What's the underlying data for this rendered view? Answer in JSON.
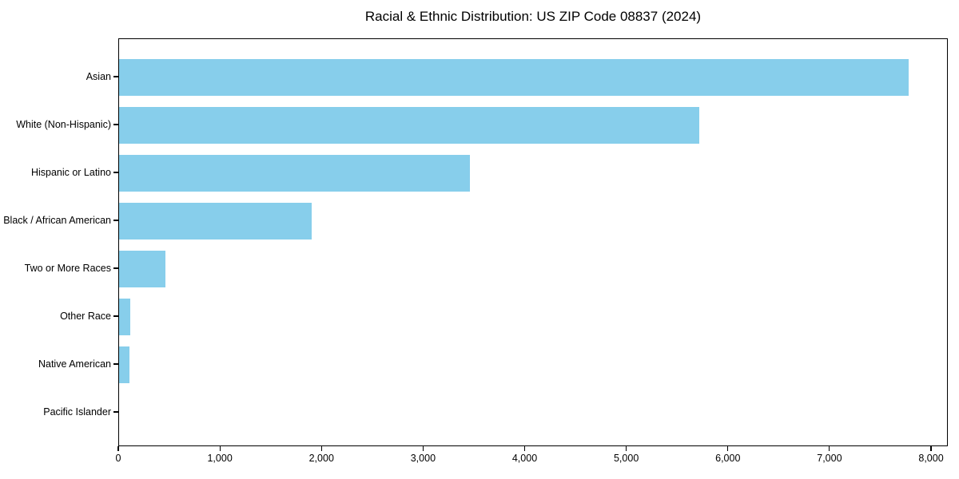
{
  "chart_data": {
    "type": "bar",
    "orientation": "horizontal",
    "title": "Racial & Ethnic Distribution: US ZIP Code 08837 (2024)",
    "categories": [
      "Asian",
      "White (Non-Hispanic)",
      "Hispanic or Latino",
      "Black / African American",
      "Two or More Races",
      "Other Race",
      "Native American",
      "Pacific Islander"
    ],
    "values": [
      7775,
      5710,
      3450,
      1895,
      460,
      110,
      100,
      0
    ],
    "x_ticks": [
      {
        "value": 0,
        "label": "0"
      },
      {
        "value": 1000,
        "label": "1,000"
      },
      {
        "value": 2000,
        "label": "2,000"
      },
      {
        "value": 3000,
        "label": "3,000"
      },
      {
        "value": 4000,
        "label": "4,000"
      },
      {
        "value": 5000,
        "label": "5,000"
      },
      {
        "value": 6000,
        "label": "6,000"
      },
      {
        "value": 7000,
        "label": "7,000"
      },
      {
        "value": 8000,
        "label": "8,000"
      }
    ],
    "xlim": [
      0,
      8165
    ],
    "xlabel": "",
    "ylabel": "",
    "grid": false,
    "legend": false,
    "bar_color": "#87CEEB",
    "frame_color": "#000000",
    "text_color": "#000000",
    "background_color": "#ffffff"
  }
}
